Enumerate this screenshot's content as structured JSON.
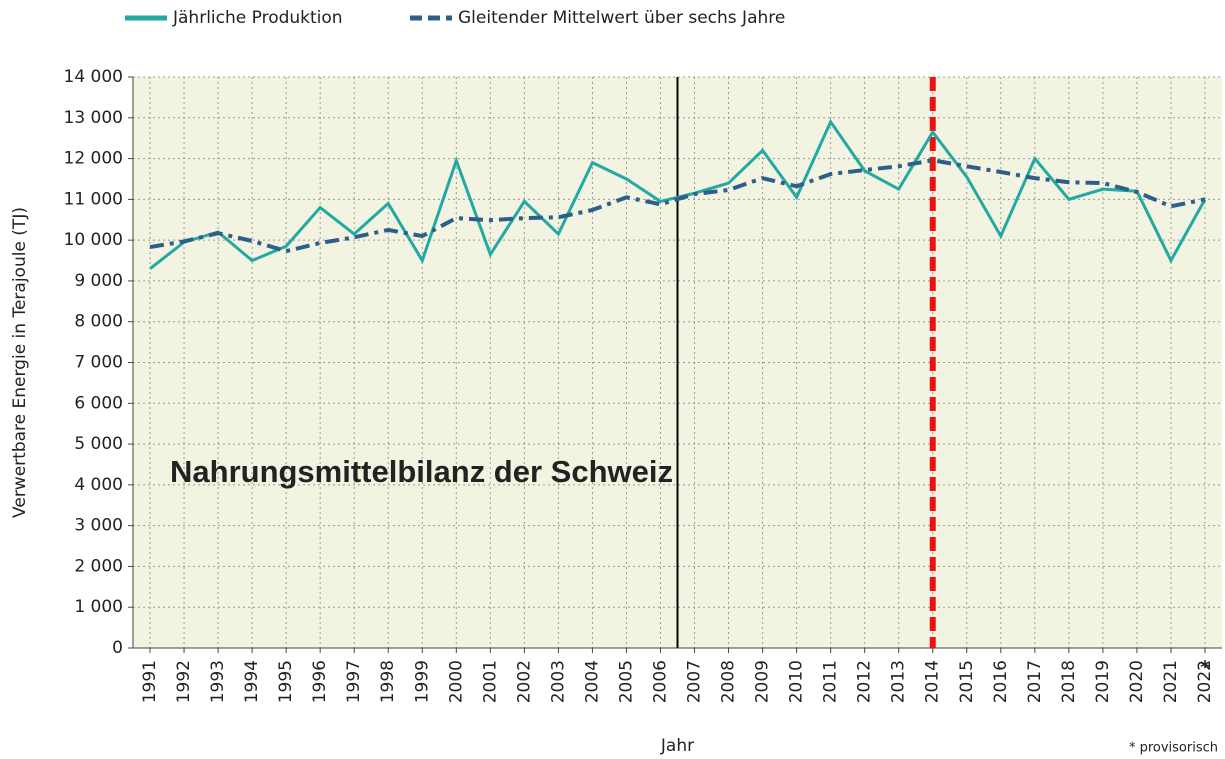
{
  "chart_data": {
    "type": "line",
    "y_label": "Verwertbare Energie in Terajoule (TJ)",
    "x_label": "Jahr",
    "annotations": [
      "Nahrungsmittelbilanz der Schweiz",
      "* provisorisch"
    ],
    "x_footnote_mark": "*",
    "x": [
      1991,
      1992,
      1993,
      1994,
      1995,
      1996,
      1997,
      1998,
      1999,
      2000,
      2001,
      2002,
      2003,
      2004,
      2005,
      2006,
      2007,
      2008,
      2009,
      2010,
      2011,
      2012,
      2013,
      2014,
      2015,
      2016,
      2017,
      2018,
      2019,
      2020,
      2021,
      2022
    ],
    "series": [
      {
        "name": "Jährliche Produktion",
        "color": "#22a9a1",
        "style": "solid",
        "values": [
          9300,
          9950,
          10200,
          9500,
          9850,
          10800,
          10150,
          10900,
          9500,
          11950,
          9650,
          10950,
          10150,
          11900,
          11500,
          10950,
          11150,
          11400,
          12200,
          11050,
          12900,
          11700,
          11250,
          12650,
          11550,
          10100,
          12000,
          11000,
          11250,
          11200,
          9500,
          11000
        ]
      },
      {
        "name": "Gleitender Mittelwert über sechs Jahre",
        "color": "#2e5f8a",
        "style": "dashdot",
        "values": [
          9830,
          9970,
          10170,
          9980,
          9730,
          9930,
          10070,
          10250,
          10100,
          10540,
          10490,
          10540,
          10560,
          10740,
          11050,
          10880,
          11130,
          11230,
          11520,
          11320,
          11620,
          11720,
          11810,
          11960,
          11810,
          11670,
          11520,
          11420,
          11400,
          11180,
          10830,
          11000
        ]
      }
    ],
    "reference_lines": [
      {
        "after": 2006,
        "color": "#000000",
        "style": "solid"
      },
      {
        "at": 2014,
        "color": "#ee1111",
        "style": "dashed"
      }
    ],
    "xlim": [
      1990.5,
      2022.5
    ],
    "ylim": [
      0,
      14000
    ],
    "yticks": [
      0,
      {
        "value": 1000,
        "label": "1 000"
      },
      {
        "value": 2000,
        "label": "2 000"
      },
      {
        "value": 3000,
        "label": "3 000"
      },
      {
        "value": 4000,
        "label": "4 000"
      },
      {
        "value": 5000,
        "label": "5 000"
      },
      {
        "value": 6000,
        "label": "6 000"
      },
      {
        "value": 7000,
        "label": "7 000"
      },
      {
        "value": 8000,
        "label": "8 000"
      },
      {
        "value": 9000,
        "label": "9 000"
      },
      {
        "value": 10000,
        "label": "10 000"
      },
      {
        "value": 11000,
        "label": "11 000"
      },
      {
        "value": 12000,
        "label": "12 000"
      },
      {
        "value": 13000,
        "label": "13 000"
      },
      {
        "value": 14000,
        "label": "14 000"
      }
    ],
    "grid": true,
    "background": "#f3f3e1",
    "legend": "top"
  }
}
